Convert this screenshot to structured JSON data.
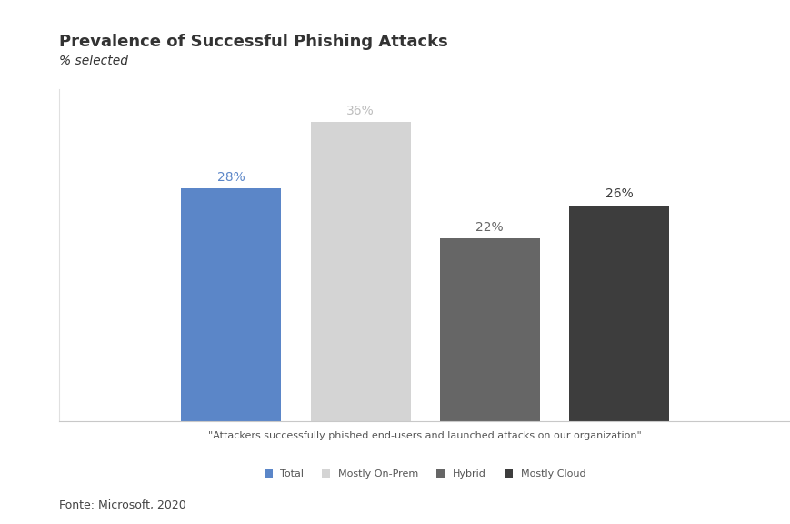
{
  "chart_data": {
    "type": "bar",
    "title": "Prevalence of Successful Phishing Attacks",
    "subtitle": "% selected",
    "source": "Fonte: Microsoft, 2020",
    "categories": [
      "\"Attackers successfully phished end-users and launched attacks on our organization\""
    ],
    "series": [
      {
        "name": "Total",
        "color": "#5b86c8",
        "values": [
          28
        ],
        "value_labels": [
          "28%"
        ]
      },
      {
        "name": "Mostly On-Prem",
        "color": "#d4d4d4",
        "values": [
          36
        ],
        "value_labels": [
          "36%"
        ]
      },
      {
        "name": "Hybrid",
        "color": "#666666",
        "values": [
          22
        ],
        "value_labels": [
          "22%"
        ]
      },
      {
        "name": "Mostly Cloud",
        "color": "#3d3d3d",
        "values": [
          26
        ],
        "value_labels": [
          "26%"
        ]
      }
    ],
    "ylim": [
      0,
      40
    ],
    "data_labels": true,
    "tick_labels": "x",
    "grid": false,
    "legend": "lower center"
  }
}
